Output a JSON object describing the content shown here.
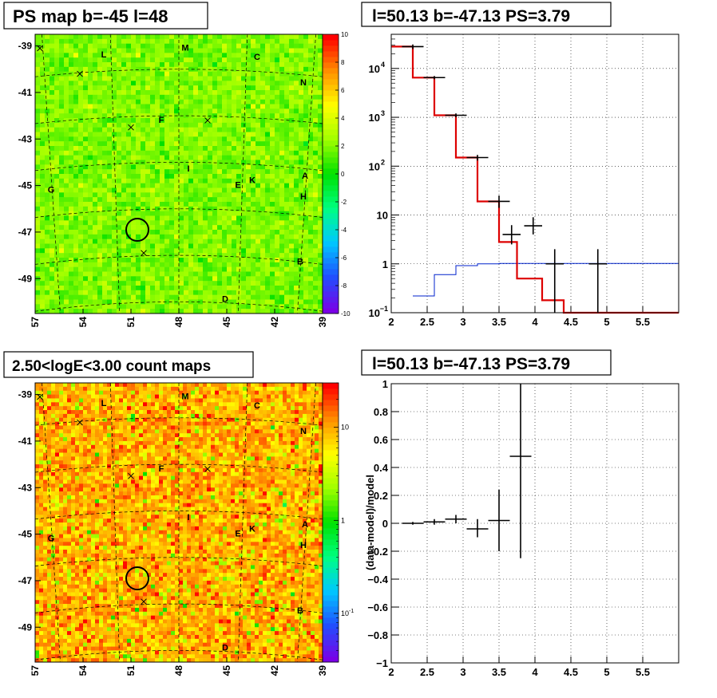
{
  "panels": {
    "map1": {
      "title": "PS map b=-45 l=48"
    },
    "map2": {
      "title": "2.50<logE<3.00 count maps"
    },
    "spec": {
      "title": "l=50.13 b=-47.13 PS=3.79"
    },
    "resid": {
      "title": "l=50.13 b=-47.13 PS=3.79"
    }
  },
  "map_axes": {
    "x_ticks": [
      "57",
      "54",
      "51",
      "48",
      "45",
      "42",
      "39"
    ],
    "y_ticks": [
      "-39",
      "-41",
      "-43",
      "-45",
      "-47",
      "-49"
    ]
  },
  "sources": [
    {
      "label": "L",
      "l": 52.7,
      "b": -39.5
    },
    {
      "label": "M",
      "l": 47.6,
      "b": -39.2
    },
    {
      "label": "C",
      "l": 43.1,
      "b": -39.6
    },
    {
      "label": "N",
      "l": 40.2,
      "b": -40.7
    },
    {
      "label": "F",
      "l": 49.1,
      "b": -42.3
    },
    {
      "label": "I",
      "l": 47.4,
      "b": -44.4
    },
    {
      "label": "E",
      "l": 44.3,
      "b": -45.1
    },
    {
      "label": "K",
      "l": 43.4,
      "b": -44.9
    },
    {
      "label": "A",
      "l": 40.1,
      "b": -44.7
    },
    {
      "label": "H",
      "l": 40.2,
      "b": -45.6
    },
    {
      "label": "G",
      "l": 56.0,
      "b": -45.3
    },
    {
      "label": "B",
      "l": 40.4,
      "b": -48.4
    },
    {
      "label": "D",
      "l": 45.1,
      "b": -50.0
    }
  ],
  "crosses": [
    {
      "l": 56.7,
      "b": -39.1
    },
    {
      "l": 54.2,
      "b": -40.2
    },
    {
      "l": 51.0,
      "b": -42.5
    },
    {
      "l": 46.2,
      "b": -42.2
    },
    {
      "l": 50.2,
      "b": -47.9
    }
  ],
  "target": {
    "l": 50.6,
    "b": -46.9
  },
  "colorbars": {
    "map1": [
      "10",
      "8",
      "6",
      "4",
      "2",
      "0",
      "-2",
      "-4",
      "-6",
      "-8",
      "-10"
    ],
    "map2": [
      "10",
      "1",
      "10",
      "-1"
    ]
  },
  "chart_data": [
    {
      "type": "heatmap",
      "title": "PS map b=-45 l=48",
      "x_ticks": [
        57,
        54,
        51,
        48,
        45,
        42,
        39
      ],
      "y_ticks": [
        -39,
        -41,
        -43,
        -45,
        -47,
        -49
      ],
      "xlim": [
        57,
        39
      ],
      "ylim": [
        -50.5,
        -38.5
      ],
      "z_range": [
        -10,
        10
      ],
      "colorscale": [
        "#7a00e6",
        "#2050ff",
        "#00c8ff",
        "#00ff80",
        "#00e000",
        "#a0ff00",
        "#ffff00",
        "#ff9000",
        "#ff0000"
      ]
    },
    {
      "type": "line",
      "title": "l=50.13 b=-47.13 PS=3.79",
      "log_y": true,
      "xlim": [
        2,
        6
      ],
      "ylim": [
        0.1,
        50000
      ],
      "grid": true,
      "x_ticks": [
        "2",
        "2.5",
        "3",
        "3.5",
        "4",
        "4.5",
        "5",
        "5.5"
      ],
      "y_tick_bases": [
        {
          "value": 0.1,
          "base": "10",
          "exp": "−1"
        },
        {
          "value": 1,
          "base": "1",
          "exp": ""
        },
        {
          "value": 10,
          "base": "10",
          "exp": ""
        },
        {
          "value": 100,
          "base": "10",
          "exp": "2"
        },
        {
          "value": 1000,
          "base": "10",
          "exp": "3"
        },
        {
          "value": 10000,
          "base": "10",
          "exp": "4"
        }
      ],
      "series": [
        {
          "color": "#dd0000",
          "bins": [
            [
              2.0,
              2.3,
              28000
            ],
            [
              2.3,
              2.6,
              6500
            ],
            [
              2.6,
              2.9,
              1100
            ],
            [
              2.9,
              3.2,
              150
            ],
            [
              3.2,
              3.5,
              19
            ],
            [
              3.5,
              3.75,
              2.8
            ],
            [
              3.75,
              4.1,
              0.5
            ],
            [
              4.1,
              4.4,
              0.18
            ],
            [
              4.4,
              6.0,
              0.1
            ]
          ]
        },
        {
          "color": "#0022cc",
          "bins": [
            [
              2.3,
              2.6,
              0.22
            ],
            [
              2.6,
              2.9,
              0.6
            ],
            [
              2.9,
              3.2,
              0.92
            ],
            [
              3.2,
              3.5,
              1.0
            ],
            [
              3.5,
              6.0,
              1.02
            ]
          ]
        },
        {
          "color": "#000000",
          "points": [
            [
              2.15,
              2.45,
              28000,
              25000,
              31000
            ],
            [
              2.45,
              2.75,
              6500,
              6000,
              7000
            ],
            [
              2.75,
              3.05,
              1100,
              1000,
              1200
            ],
            [
              3.05,
              3.35,
              150,
              130,
              170
            ],
            [
              3.35,
              3.65,
              19,
              14,
              25
            ],
            [
              3.55,
              3.8,
              4,
              2.5,
              6.2
            ],
            [
              3.85,
              4.1,
              6,
              4,
              9
            ],
            [
              4.15,
              4.4,
              1,
              0.1,
              2
            ],
            [
              4.75,
              5.0,
              1,
              0.1,
              2
            ]
          ]
        }
      ]
    },
    {
      "type": "heatmap",
      "title": "2.50<logE<3.00 count maps",
      "x_ticks": [
        57,
        54,
        51,
        48,
        45,
        42,
        39
      ],
      "y_ticks": [
        -39,
        -41,
        -43,
        -45,
        -47,
        -49
      ],
      "xlim": [
        57,
        39
      ],
      "ylim": [
        -50.5,
        -38.5
      ],
      "log_z": true,
      "z_range": [
        0.03,
        30
      ],
      "colorscale": [
        "#7a00e6",
        "#2050ff",
        "#00c8ff",
        "#00ff80",
        "#00e000",
        "#a0ff00",
        "#ffff00",
        "#ff9000",
        "#ff0000"
      ]
    },
    {
      "type": "scatter",
      "title": "l=50.13 b=-47.13 PS=3.79",
      "ylabel": "(data-model)/model",
      "xlim": [
        2,
        6
      ],
      "ylim": [
        -1,
        1
      ],
      "grid": true,
      "x_ticks": [
        "2",
        "2.5",
        "3",
        "3.5",
        "4",
        "4.5",
        "5",
        "5.5"
      ],
      "y_ticks": [
        "1",
        "0.8",
        "0.6",
        "0.4",
        "0.2",
        "0",
        "−0.2",
        "−0.4",
        "−0.6",
        "−0.8",
        "−1"
      ],
      "points": [
        [
          2.15,
          2.45,
          0.0,
          -0.01,
          0.01
        ],
        [
          2.45,
          2.75,
          0.01,
          -0.01,
          0.03
        ],
        [
          2.75,
          3.05,
          0.03,
          0.0,
          0.06
        ],
        [
          3.05,
          3.35,
          -0.04,
          -0.1,
          0.03
        ],
        [
          3.35,
          3.65,
          0.02,
          -0.2,
          0.24
        ],
        [
          3.65,
          3.95,
          0.48,
          -0.25,
          1.0
        ]
      ]
    }
  ]
}
